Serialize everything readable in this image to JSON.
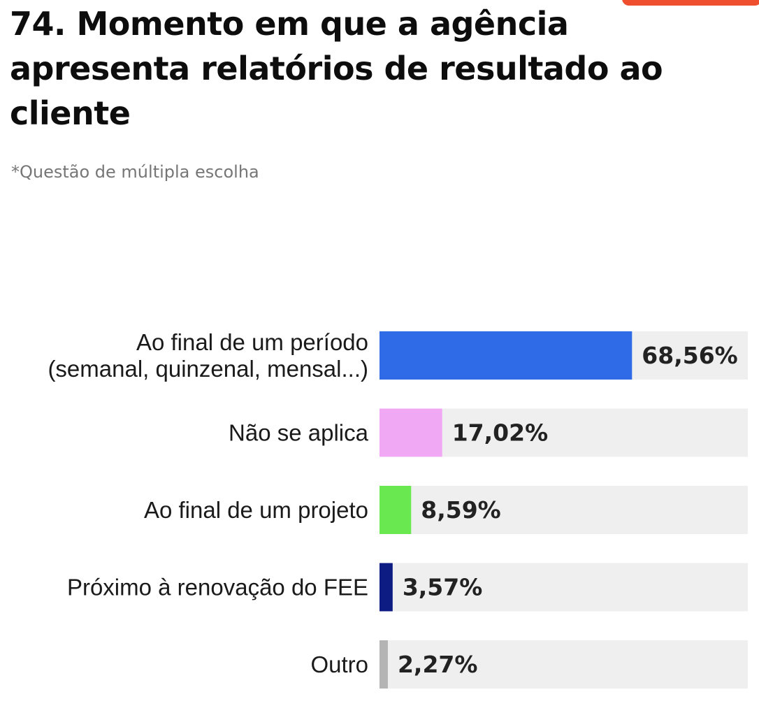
{
  "chart_data": {
    "type": "bar",
    "orientation": "horizontal",
    "title": "74. Momento em que a agência apresenta relatórios de resultado ao cliente",
    "subtitle": "*Questão de múltipla escolha",
    "categories": [
      [
        "Ao final de um período",
        "(semanal, quinzenal, mensal...)"
      ],
      [
        "Não se aplica"
      ],
      [
        "Ao final de um projeto"
      ],
      [
        "Próximo à renovação do FEE"
      ],
      [
        "Outro"
      ]
    ],
    "values": [
      68.56,
      17.02,
      8.59,
      3.57,
      2.27
    ],
    "value_labels": [
      "68,56%",
      "17,02%",
      "8,59%",
      "3,57%",
      "2,27%"
    ],
    "colors": [
      "#2f6be6",
      "#f0a8f4",
      "#6ae84f",
      "#0d1c82",
      "#b4b4b4"
    ],
    "track_color": "#efefef",
    "xlim": [
      0,
      100
    ],
    "grid": false,
    "legend": "none"
  }
}
